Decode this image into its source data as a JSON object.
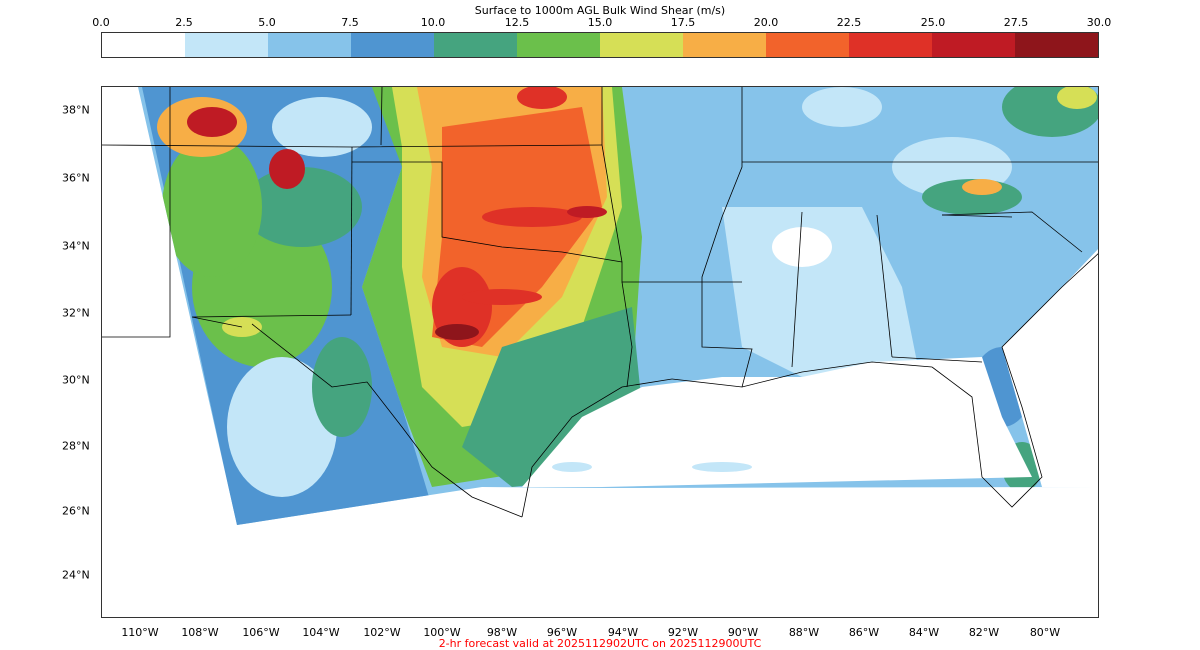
{
  "colorbar": {
    "title": "Surface to 1000m AGL Bulk Wind Shear (m/s)",
    "ticks": [
      "0.0",
      "2.5",
      "5.0",
      "7.5",
      "10.0",
      "12.5",
      "15.0",
      "17.5",
      "20.0",
      "22.5",
      "25.0",
      "27.5",
      "30.0"
    ],
    "colors": [
      "#ffffff",
      "#c3e6f8",
      "#86c3ea",
      "#4f95d1",
      "#45a47f",
      "#6bc04b",
      "#d6df56",
      "#f7ae46",
      "#f2632b",
      "#df3127",
      "#bf1b24",
      "#8e151b"
    ]
  },
  "map": {
    "latitudes": [
      "38°N",
      "36°N",
      "34°N",
      "32°N",
      "30°N",
      "28°N",
      "26°N",
      "24°N"
    ],
    "longitudes": [
      "110°W",
      "108°W",
      "106°W",
      "104°W",
      "102°W",
      "100°W",
      "98°W",
      "96°W",
      "94°W",
      "92°W",
      "90°W",
      "88°W",
      "86°W",
      "84°W",
      "82°W",
      "80°W"
    ]
  },
  "footer": "2-hr forecast valid at 2025112902UTC on 2025112900UTC"
}
